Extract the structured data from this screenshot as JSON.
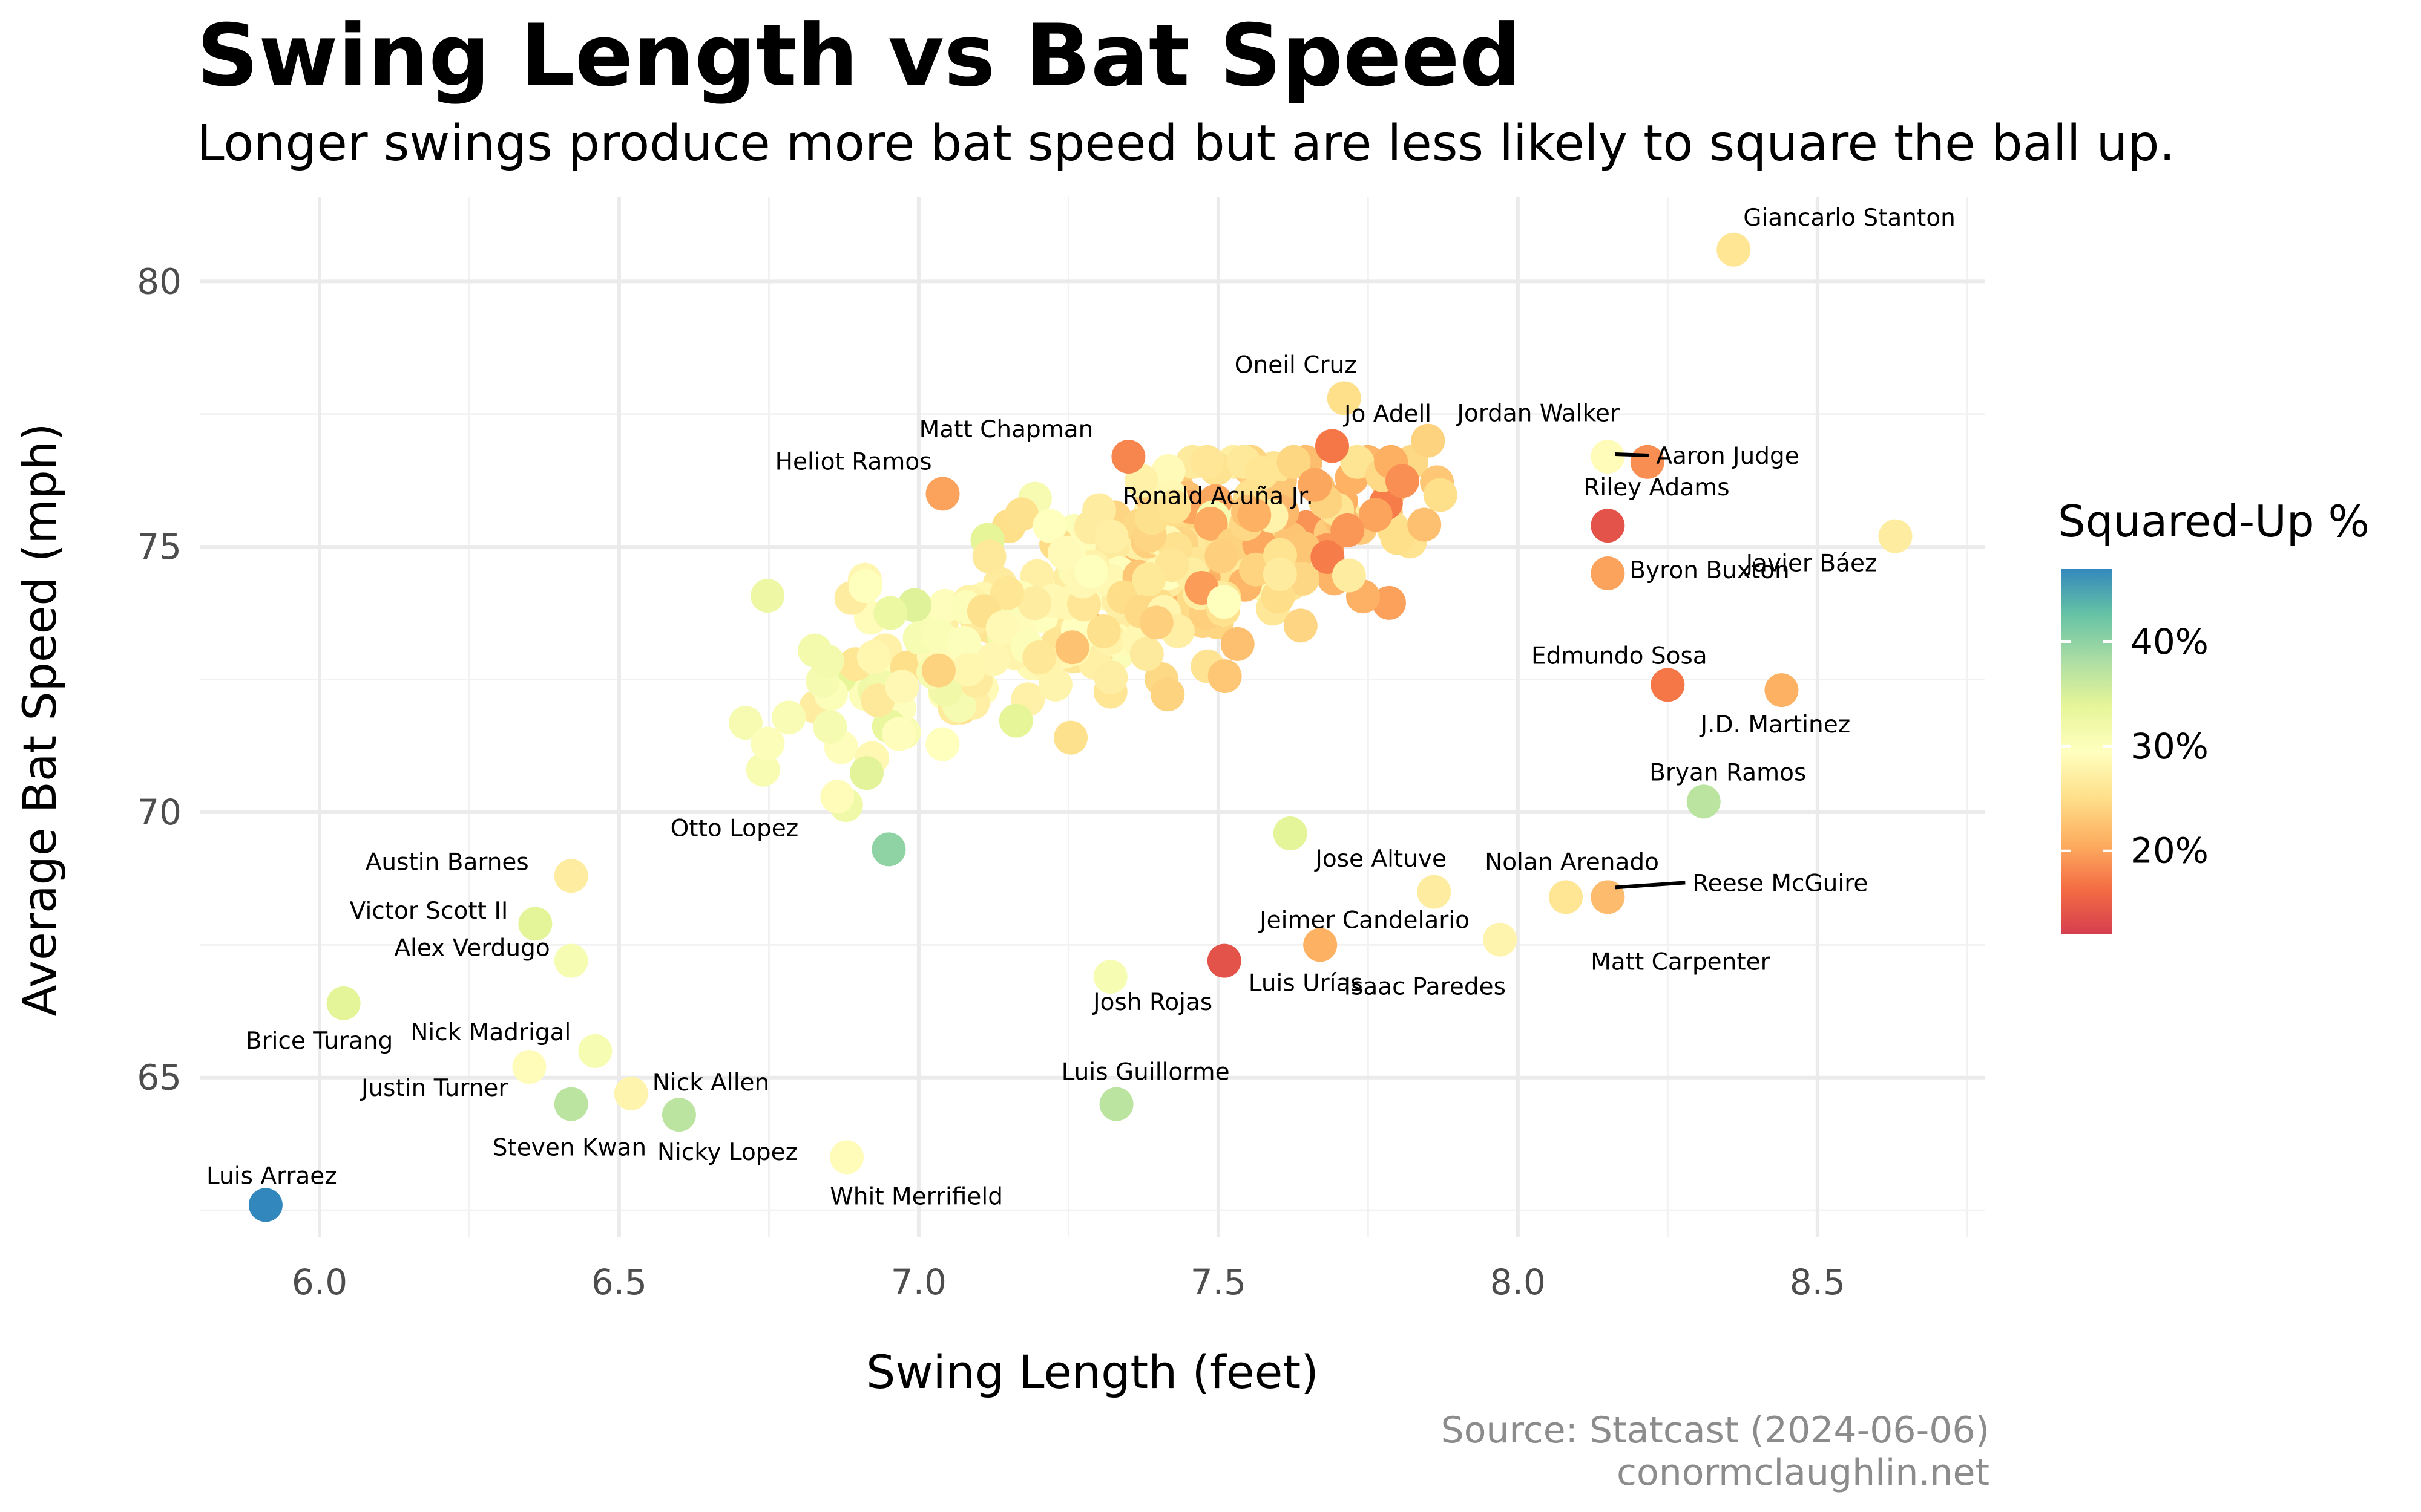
{
  "chart_data": {
    "type": "scatter",
    "title": "Swing Length vs Bat Speed",
    "subtitle": "Longer swings produce more bat speed but are less likely to square the ball up.",
    "xlabel": "Swing Length (feet)",
    "ylabel": "Average Bat Speed (mph)",
    "xlim": [
      5.8,
      8.78
    ],
    "ylim": [
      62,
      81.6
    ],
    "x_ticks": [
      "6.0",
      "6.5",
      "7.0",
      "7.5",
      "8.0",
      "8.5"
    ],
    "y_ticks": [
      "65",
      "70",
      "75",
      "80"
    ],
    "grid": true,
    "legend": {
      "title": "Squared-Up %",
      "position": "right",
      "ticks": [
        "20%",
        "30%",
        "40%"
      ],
      "range": [
        12,
        47
      ]
    },
    "colors": {
      "palette": [
        "#d53e4f",
        "#f46d43",
        "#fdae61",
        "#fee08b",
        "#ffffbf",
        "#e6f598",
        "#abdda4",
        "#66c2a5",
        "#3288bd"
      ],
      "grid": "#ebebeb",
      "text": "#4d4d4d"
    },
    "labeled_points": [
      {
        "name": "Giancarlo Stanton",
        "x": 8.36,
        "y": 80.6,
        "sq": 26
      },
      {
        "name": "Oneil Cruz",
        "x": 7.71,
        "y": 77.8,
        "sq": 25
      },
      {
        "name": "Jo Adell",
        "x": 7.69,
        "y": 76.9,
        "sq": 17
      },
      {
        "name": "Jordan Walker",
        "x": 7.85,
        "y": 77.0,
        "sq": 24
      },
      {
        "name": "Aaron Judge",
        "x": 8.15,
        "y": 76.7,
        "sq": 29
      },
      {
        "name": "Matt Chapman",
        "x": 7.35,
        "y": 76.7,
        "sq": 18
      },
      {
        "name": "Heliot Ramos",
        "x": 7.04,
        "y": 76.0,
        "sq": 20
      },
      {
        "name": "Ronald Acuña Jr.",
        "x": 7.56,
        "y": 75.6,
        "sq": 21
      },
      {
        "name": "Riley Adams",
        "x": 8.15,
        "y": 75.4,
        "sq": 14
      },
      {
        "name": "Javier Báez",
        "x": 8.63,
        "y": 75.2,
        "sq": 27
      },
      {
        "name": "Byron Buxton",
        "x": 8.15,
        "y": 74.5,
        "sq": 20
      },
      {
        "name": "Edmundo Sosa",
        "x": 8.25,
        "y": 72.4,
        "sq": 17
      },
      {
        "name": "J.D. Martinez",
        "x": 8.44,
        "y": 72.3,
        "sq": 21
      },
      {
        "name": "Bryan Ramos",
        "x": 8.31,
        "y": 70.2,
        "sq": 37
      },
      {
        "name": "Otto Lopez",
        "x": 6.95,
        "y": 69.3,
        "sq": 40
      },
      {
        "name": "Jose Altuve",
        "x": 7.62,
        "y": 69.6,
        "sq": 34
      },
      {
        "name": "Austin Barnes",
        "x": 6.42,
        "y": 68.8,
        "sq": 27
      },
      {
        "name": "Nolan Arenado",
        "x": 8.08,
        "y": 68.4,
        "sq": 26
      },
      {
        "name": "Reese McGuire",
        "x": 8.15,
        "y": 68.4,
        "sq": 22
      },
      {
        "name": "Victor Scott II",
        "x": 6.36,
        "y": 67.9,
        "sq": 34
      },
      {
        "name": "Jeimer Candelario",
        "x": 7.67,
        "y": 67.5,
        "sq": 21
      },
      {
        "name": "Matt Carpenter",
        "x": 7.97,
        "y": 67.6,
        "sq": 28
      },
      {
        "name": "Alex Verdugo",
        "x": 6.42,
        "y": 67.2,
        "sq": 31
      },
      {
        "name": "Luis Urías",
        "x": 7.51,
        "y": 67.2,
        "sq": 14
      },
      {
        "name": "Isaac Paredes",
        "x": 7.86,
        "y": 68.5,
        "sq": 27
      },
      {
        "name": "Josh Rojas",
        "x": 7.32,
        "y": 66.9,
        "sq": 31
      },
      {
        "name": "Brice Turang",
        "x": 6.04,
        "y": 66.4,
        "sq": 34
      },
      {
        "name": "Nick Madrigal",
        "x": 6.46,
        "y": 65.5,
        "sq": 31
      },
      {
        "name": "Justin Turner",
        "x": 6.35,
        "y": 65.2,
        "sq": 29
      },
      {
        "name": "Nick Allen",
        "x": 6.52,
        "y": 64.7,
        "sq": 28
      },
      {
        "name": "Luis Guillorme",
        "x": 7.33,
        "y": 64.5,
        "sq": 37
      },
      {
        "name": "Steven Kwan",
        "x": 6.42,
        "y": 64.5,
        "sq": 37
      },
      {
        "name": "Nicky Lopez",
        "x": 6.6,
        "y": 64.3,
        "sq": 37
      },
      {
        "name": "Whit Merrifield",
        "x": 6.88,
        "y": 63.5,
        "sq": 29
      },
      {
        "name": "Luis Arraez",
        "x": 5.91,
        "y": 62.6,
        "sq": 47
      }
    ]
  },
  "source_line1": "Source: Statcast (2024-06-06)",
  "source_line2": "conormclaughlin.net"
}
